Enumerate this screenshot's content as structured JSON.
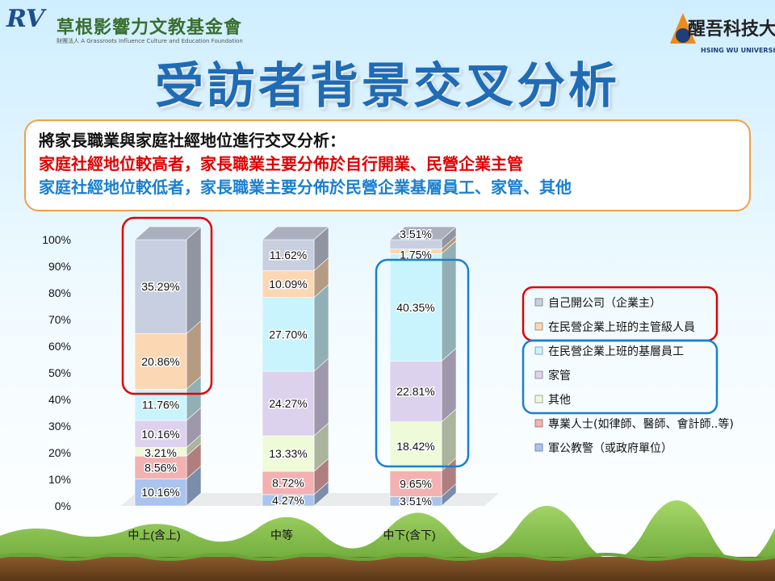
{
  "header": {
    "left_logo_mark": "RV",
    "left_logo_name": "草根影響力文教基金會",
    "left_logo_subtitle": "財團法人 A Grassroots Influence Culture and Education Foundation",
    "right_logo_name": "醒吾科技大學",
    "right_logo_subtitle": "HSING WU UNIVERSITY"
  },
  "title": "受訪者背景交叉分析",
  "callout": {
    "line1": "將家長職業與家庭社經地位進行交叉分析：",
    "line2": "家庭社經地位較高者，家長職業主要分佈於自行開業、民營企業主管",
    "line3": "家庭社經地位較低者，家長職業主要分佈於民營企業基層員工、家管、其他"
  },
  "colors": {
    "title": "#1f6bb5",
    "highlight_red": "#e00000",
    "highlight_blue": "#1a7fd0",
    "callout_border": "#f0a04b"
  },
  "chart_data": {
    "type": "bar",
    "stacked": true,
    "categories": [
      "中上(含上)",
      "中等",
      "中下(含下)"
    ],
    "ylim": [
      0,
      100
    ],
    "yticks": [
      "0%",
      "10%",
      "20%",
      "30%",
      "40%",
      "50%",
      "60%",
      "70%",
      "80%",
      "90%",
      "100%"
    ],
    "series": [
      {
        "name": "軍公教警（或政府單位）",
        "color": "#a9c4ee",
        "values": [
          10.16,
          4.27,
          3.51
        ],
        "labels": [
          "10.16%",
          "4.27%",
          "3.51%"
        ]
      },
      {
        "name": "專業人士(如律師、醫師、會計師..等)",
        "color": "#f3b1b1",
        "values": [
          8.56,
          8.72,
          9.65
        ],
        "labels": [
          "8.56%",
          "8.72%",
          "9.65%"
        ]
      },
      {
        "name": "其他",
        "color": "#eefad8",
        "values": [
          3.21,
          13.33,
          18.42
        ],
        "labels": [
          "3.21%",
          "13.33%",
          "18.42%"
        ]
      },
      {
        "name": "家管",
        "color": "#ddd2ee",
        "values": [
          10.16,
          24.27,
          22.81
        ],
        "labels": [
          "10.16%",
          "24.27%",
          "22.81%"
        ]
      },
      {
        "name": "在民營企業上班的基層員工",
        "color": "#c9f4fd",
        "values": [
          11.76,
          27.7,
          40.35
        ],
        "labels": [
          "11.76%",
          "27.70%",
          "40.35%"
        ]
      },
      {
        "name": "在民營企業上班的主管級人員",
        "color": "#fcd7b3",
        "values": [
          20.86,
          10.09,
          1.75
        ],
        "labels": [
          "20.86%",
          "10.09%",
          "1.75%"
        ]
      },
      {
        "name": "自己開公司（企業主）",
        "color": "#c8cfe0",
        "values": [
          35.29,
          11.62,
          3.51
        ],
        "labels": [
          "35.29%",
          "11.62%",
          "3.51%"
        ]
      }
    ],
    "legend_order": [
      6,
      5,
      4,
      3,
      2,
      1,
      0
    ],
    "legend_position": "right",
    "grid": false
  }
}
